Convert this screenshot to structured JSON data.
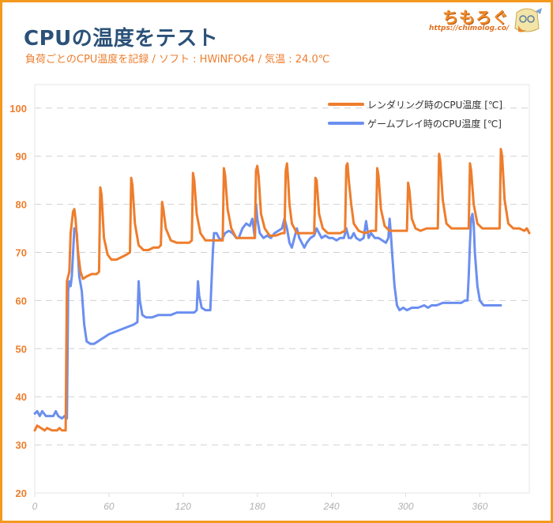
{
  "header": {
    "title": "CPUの温度をテスト",
    "subtitle": "負荷ごとのCPU温度を記録 / ソフト : HWiNFO64 / 気温 : 24.0℃"
  },
  "logo": {
    "text": "ちもろぐ",
    "url": "https://chimolog.co/"
  },
  "colors": {
    "rendering": "#ee7d2c",
    "gaming": "#6b8ff0",
    "frame": "#f39a1e",
    "title": "#2b5178",
    "ytick": "#ee7d2c",
    "xtick": "#b0b0b0",
    "grid": "#d0d0d0"
  },
  "chart_data": {
    "type": "line",
    "title": "CPUの温度をテスト",
    "subtitle": "負荷ごとのCPU温度を記録 / ソフト : HWiNFO64 / 気温 : 24.0℃",
    "xlabel": "",
    "ylabel": "",
    "xlim": [
      0,
      400
    ],
    "ylim": [
      20,
      105
    ],
    "x_ticks": [
      0,
      60,
      120,
      180,
      240,
      300,
      360
    ],
    "y_ticks": [
      20,
      30,
      40,
      50,
      60,
      70,
      80,
      90,
      100
    ],
    "grid": "horizontal dashed",
    "legend_position": "top-right",
    "series": [
      {
        "name": "レンダリング時のCPU温度 [℃]",
        "color": "#ee7d2c",
        "points": [
          [
            0,
            33
          ],
          [
            2,
            34
          ],
          [
            5,
            33.5
          ],
          [
            8,
            33
          ],
          [
            10,
            33.5
          ],
          [
            14,
            33
          ],
          [
            18,
            33
          ],
          [
            20,
            33.5
          ],
          [
            22,
            33
          ],
          [
            25,
            33
          ],
          [
            26,
            64
          ],
          [
            28,
            66
          ],
          [
            29,
            74
          ],
          [
            31,
            78.5
          ],
          [
            32,
            79
          ],
          [
            33,
            77
          ],
          [
            35,
            70
          ],
          [
            37,
            66
          ],
          [
            39,
            64.5
          ],
          [
            42,
            65
          ],
          [
            46,
            65.5
          ],
          [
            50,
            65.5
          ],
          [
            52,
            66
          ],
          [
            53,
            83.5
          ],
          [
            54,
            82
          ],
          [
            56,
            73
          ],
          [
            59,
            69.5
          ],
          [
            62,
            68.5
          ],
          [
            66,
            68.5
          ],
          [
            70,
            69
          ],
          [
            74,
            69.5
          ],
          [
            77,
            70
          ],
          [
            78,
            85.5
          ],
          [
            79,
            84
          ],
          [
            81,
            76
          ],
          [
            84,
            71.5
          ],
          [
            88,
            70.5
          ],
          [
            92,
            70.5
          ],
          [
            96,
            71
          ],
          [
            100,
            71
          ],
          [
            102,
            71.5
          ],
          [
            103,
            80.5
          ],
          [
            104,
            79
          ],
          [
            106,
            75
          ],
          [
            110,
            72.5
          ],
          [
            115,
            72
          ],
          [
            120,
            72
          ],
          [
            125,
            72
          ],
          [
            127,
            72.5
          ],
          [
            128,
            86.5
          ],
          [
            129,
            85
          ],
          [
            131,
            78
          ],
          [
            134,
            74
          ],
          [
            138,
            72.5
          ],
          [
            143,
            72.5
          ],
          [
            148,
            72.5
          ],
          [
            152,
            72.5
          ],
          [
            153,
            87.5
          ],
          [
            154,
            86
          ],
          [
            156,
            79
          ],
          [
            159,
            75
          ],
          [
            163,
            73
          ],
          [
            168,
            73
          ],
          [
            173,
            73
          ],
          [
            178,
            73
          ],
          [
            179,
            87
          ],
          [
            180,
            88
          ],
          [
            181,
            86
          ],
          [
            183,
            78
          ],
          [
            186,
            75
          ],
          [
            190,
            73.5
          ],
          [
            195,
            73.5
          ],
          [
            200,
            74
          ],
          [
            202,
            74
          ],
          [
            203,
            87
          ],
          [
            204,
            88.5
          ],
          [
            205,
            85
          ],
          [
            206,
            80
          ],
          [
            208,
            76
          ],
          [
            212,
            74
          ],
          [
            216,
            74
          ],
          [
            221,
            74
          ],
          [
            226,
            74
          ],
          [
            227,
            85.5
          ],
          [
            228,
            85
          ],
          [
            230,
            78
          ],
          [
            233,
            75
          ],
          [
            237,
            74
          ],
          [
            242,
            74
          ],
          [
            247,
            74
          ],
          [
            251,
            74.5
          ],
          [
            252,
            88
          ],
          [
            253,
            88.5
          ],
          [
            254,
            85
          ],
          [
            256,
            80
          ],
          [
            258,
            76
          ],
          [
            262,
            74.5
          ],
          [
            267,
            74
          ],
          [
            272,
            74.5
          ],
          [
            276,
            74.5
          ],
          [
            277,
            87.5
          ],
          [
            278,
            86
          ],
          [
            280,
            79
          ],
          [
            283,
            75.5
          ],
          [
            287,
            74.5
          ],
          [
            292,
            74.5
          ],
          [
            297,
            74.5
          ],
          [
            301,
            74.5
          ],
          [
            302,
            84.5
          ],
          [
            303,
            83
          ],
          [
            305,
            77
          ],
          [
            308,
            75
          ],
          [
            312,
            74.5
          ],
          [
            317,
            75
          ],
          [
            322,
            75
          ],
          [
            326,
            75
          ],
          [
            327,
            90.5
          ],
          [
            328,
            89
          ],
          [
            330,
            81
          ],
          [
            333,
            76
          ],
          [
            337,
            75
          ],
          [
            342,
            75
          ],
          [
            347,
            75
          ],
          [
            351,
            75
          ],
          [
            352,
            88.5
          ],
          [
            353,
            87
          ],
          [
            355,
            80
          ],
          [
            358,
            76
          ],
          [
            362,
            75
          ],
          [
            367,
            75
          ],
          [
            372,
            75
          ],
          [
            376,
            75
          ],
          [
            377,
            91.5
          ],
          [
            378,
            90
          ],
          [
            380,
            81
          ],
          [
            383,
            76
          ],
          [
            387,
            75
          ],
          [
            392,
            75
          ],
          [
            396,
            74.5
          ],
          [
            398,
            75
          ],
          [
            400,
            74
          ]
        ]
      },
      {
        "name": "ゲームプレイ時のCPU温度 [℃]",
        "color": "#6b8ff0",
        "points": [
          [
            0,
            36.5
          ],
          [
            2,
            37
          ],
          [
            4,
            36
          ],
          [
            6,
            37
          ],
          [
            9,
            36
          ],
          [
            12,
            36
          ],
          [
            15,
            36
          ],
          [
            17,
            37
          ],
          [
            19,
            36
          ],
          [
            22,
            35.5
          ],
          [
            24,
            36
          ],
          [
            26,
            35.5
          ],
          [
            27,
            62
          ],
          [
            28,
            64
          ],
          [
            29,
            63
          ],
          [
            30,
            65
          ],
          [
            31,
            70
          ],
          [
            32,
            75
          ],
          [
            33,
            75
          ],
          [
            34,
            74
          ],
          [
            36,
            65
          ],
          [
            38,
            62
          ],
          [
            40,
            55
          ],
          [
            42,
            51.5
          ],
          [
            45,
            51
          ],
          [
            48,
            51
          ],
          [
            51,
            51.5
          ],
          [
            54,
            52
          ],
          [
            57,
            52.5
          ],
          [
            60,
            53
          ],
          [
            65,
            53.5
          ],
          [
            70,
            54
          ],
          [
            75,
            54.5
          ],
          [
            80,
            55
          ],
          [
            83,
            55.5
          ],
          [
            84,
            64
          ],
          [
            85,
            60
          ],
          [
            87,
            57
          ],
          [
            90,
            56.5
          ],
          [
            95,
            56.5
          ],
          [
            100,
            57
          ],
          [
            105,
            57
          ],
          [
            110,
            57
          ],
          [
            115,
            57.5
          ],
          [
            120,
            57.5
          ],
          [
            125,
            57.5
          ],
          [
            129,
            57.5
          ],
          [
            131,
            58
          ],
          [
            132,
            64
          ],
          [
            133,
            61
          ],
          [
            135,
            58.5
          ],
          [
            138,
            58
          ],
          [
            142,
            58
          ],
          [
            143,
            64
          ],
          [
            144,
            70
          ],
          [
            145,
            74
          ],
          [
            147,
            74
          ],
          [
            149,
            73
          ],
          [
            151,
            72.5
          ],
          [
            154,
            74
          ],
          [
            157,
            74.5
          ],
          [
            160,
            74
          ],
          [
            163,
            73
          ],
          [
            165,
            73
          ],
          [
            168,
            75
          ],
          [
            171,
            76
          ],
          [
            174,
            75.5
          ],
          [
            176,
            77
          ],
          [
            178,
            73
          ],
          [
            179,
            80
          ],
          [
            180,
            77
          ],
          [
            182,
            74
          ],
          [
            185,
            73
          ],
          [
            188,
            73.5
          ],
          [
            191,
            73
          ],
          [
            194,
            74
          ],
          [
            197,
            74.5
          ],
          [
            200,
            75
          ],
          [
            202,
            77
          ],
          [
            204,
            75
          ],
          [
            206,
            72
          ],
          [
            208,
            71
          ],
          [
            210,
            73
          ],
          [
            212,
            75
          ],
          [
            214,
            73
          ],
          [
            216,
            72
          ],
          [
            218,
            71
          ],
          [
            220,
            72
          ],
          [
            223,
            73
          ],
          [
            226,
            73.5
          ],
          [
            228,
            75
          ],
          [
            230,
            74
          ],
          [
            232,
            73
          ],
          [
            235,
            73.5
          ],
          [
            238,
            73
          ],
          [
            241,
            73
          ],
          [
            244,
            72.5
          ],
          [
            247,
            73
          ],
          [
            250,
            73
          ],
          [
            252,
            75
          ],
          [
            254,
            73
          ],
          [
            256,
            73
          ],
          [
            258,
            74
          ],
          [
            260,
            73
          ],
          [
            263,
            72.5
          ],
          [
            266,
            73
          ],
          [
            268,
            76.5
          ],
          [
            270,
            73
          ],
          [
            272,
            74
          ],
          [
            275,
            73
          ],
          [
            278,
            73
          ],
          [
            281,
            72.5
          ],
          [
            284,
            72
          ],
          [
            286,
            73
          ],
          [
            287,
            77
          ],
          [
            288,
            74
          ],
          [
            289,
            70
          ],
          [
            291,
            63
          ],
          [
            293,
            59
          ],
          [
            295,
            58
          ],
          [
            298,
            58.5
          ],
          [
            301,
            58
          ],
          [
            305,
            58.5
          ],
          [
            310,
            58.5
          ],
          [
            315,
            59
          ],
          [
            318,
            58.5
          ],
          [
            321,
            59
          ],
          [
            325,
            59
          ],
          [
            330,
            59.5
          ],
          [
            335,
            59.5
          ],
          [
            340,
            59.5
          ],
          [
            345,
            59.5
          ],
          [
            348,
            60
          ],
          [
            350,
            60
          ],
          [
            351,
            65
          ],
          [
            352,
            72
          ],
          [
            353,
            77
          ],
          [
            354,
            78
          ],
          [
            355,
            76
          ],
          [
            356,
            70
          ],
          [
            358,
            63
          ],
          [
            360,
            60
          ],
          [
            363,
            59
          ],
          [
            368,
            59
          ],
          [
            373,
            59
          ],
          [
            377,
            59
          ]
        ]
      }
    ]
  },
  "legend": {
    "items": [
      {
        "label": "レンダリング時のCPU温度 [℃]"
      },
      {
        "label": "ゲームプレイ時のCPU温度 [℃]"
      }
    ]
  }
}
